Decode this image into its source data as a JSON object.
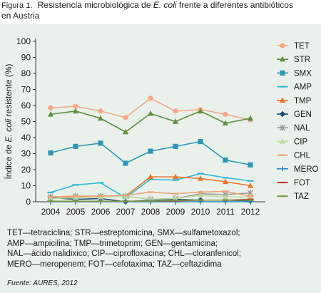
{
  "caption": {
    "figure_label": "Figura 1.",
    "title_before": "Resistencia microbiológica de ",
    "title_italic": "E. coli",
    "title_after": " frente a diferentes antibióticos",
    "title_line2": "en Austria"
  },
  "abbreviations": [
    "TET—tetraciclina; STR—estreptomicina, SMX—sulfametoxazol;",
    "AMP—ampicilina; TMP—trimetoprim; GEN—gentamicina;",
    "NAL—ácido nalidixico; CIP—ciprofloxacina; CHL—cloranfenicol;",
    "MERO—meropenem; FOT—cefotaxima; TAZ—ceftazidima"
  ],
  "source": "Fuente: AURES, 2012",
  "chart_data": {
    "type": "line",
    "ylabel_before": "Índice de ",
    "ylabel_italic": "E. coli",
    "ylabel_after": " resistente (%)",
    "xlabel": "",
    "x": [
      "2004",
      "2005",
      "2006",
      "2007",
      "2008",
      "2009",
      "2010",
      "2011",
      "2012"
    ],
    "ylim": [
      0,
      100
    ],
    "yticks": [
      0,
      10,
      20,
      30,
      40,
      50,
      60,
      70,
      80,
      90,
      100
    ],
    "grid": false,
    "legend_position": "right",
    "series": [
      {
        "name": "TET",
        "color": "#f5a98a",
        "marker": "circle",
        "values": [
          58.5,
          59.5,
          56.5,
          52.5,
          64.5,
          56.5,
          57.5,
          54.5,
          51
        ]
      },
      {
        "name": "STR",
        "color": "#5e8f3f",
        "marker": "triangle",
        "values": [
          54.5,
          56.5,
          52,
          43.5,
          55,
          50,
          56.5,
          49,
          52
        ]
      },
      {
        "name": "SMX",
        "color": "#2f97b6",
        "marker": "square",
        "values": [
          30.5,
          34.5,
          36.5,
          24,
          31.5,
          34.5,
          37.5,
          26,
          23
        ]
      },
      {
        "name": "AMP",
        "color": "#31b8d9",
        "marker": "dash",
        "values": [
          5.8,
          10.5,
          11.8,
          2.5,
          14,
          13.5,
          17.5,
          15,
          13
        ]
      },
      {
        "name": "TMP",
        "color": "#e8742a",
        "marker": "triangle",
        "values": [
          3,
          3,
          3.2,
          3.5,
          15.5,
          15.5,
          14.5,
          12.5,
          10
        ]
      },
      {
        "name": "GEN",
        "color": "#1e4a73",
        "marker": "diamond",
        "values": [
          2.5,
          1.5,
          2,
          0,
          1,
          1.5,
          1,
          1,
          0.5
        ]
      },
      {
        "name": "NAL",
        "color": "#999999",
        "marker": "star",
        "values": [
          3,
          3.5,
          3.5,
          3.5,
          1.5,
          2,
          5,
          4.5,
          5.5
        ]
      },
      {
        "name": "CIP",
        "color": "#c0d9a1",
        "marker": "triangle",
        "values": [
          2,
          2.5,
          3,
          3.5,
          1.5,
          2,
          4,
          3,
          3
        ]
      },
      {
        "name": "CHL",
        "color": "#f2a070",
        "marker": "dash",
        "values": [
          3,
          3.5,
          3.5,
          4,
          6,
          5,
          6,
          6.5,
          3.5
        ]
      },
      {
        "name": "MERO",
        "color": "#2e86c1",
        "marker": "plus",
        "values": [
          0,
          0,
          0,
          0,
          0,
          0,
          0,
          0,
          0
        ]
      },
      {
        "name": "FOT",
        "color": "#c0392b",
        "marker": "dash",
        "values": [
          0.3,
          0.3,
          0.3,
          0.3,
          0.5,
          0.5,
          1,
          1,
          1.5
        ]
      },
      {
        "name": "TAZ",
        "color": "#7a9a48",
        "marker": "dash",
        "values": [
          0.3,
          0.3,
          0.3,
          0.3,
          0.5,
          0.8,
          1,
          1,
          1
        ]
      }
    ]
  }
}
